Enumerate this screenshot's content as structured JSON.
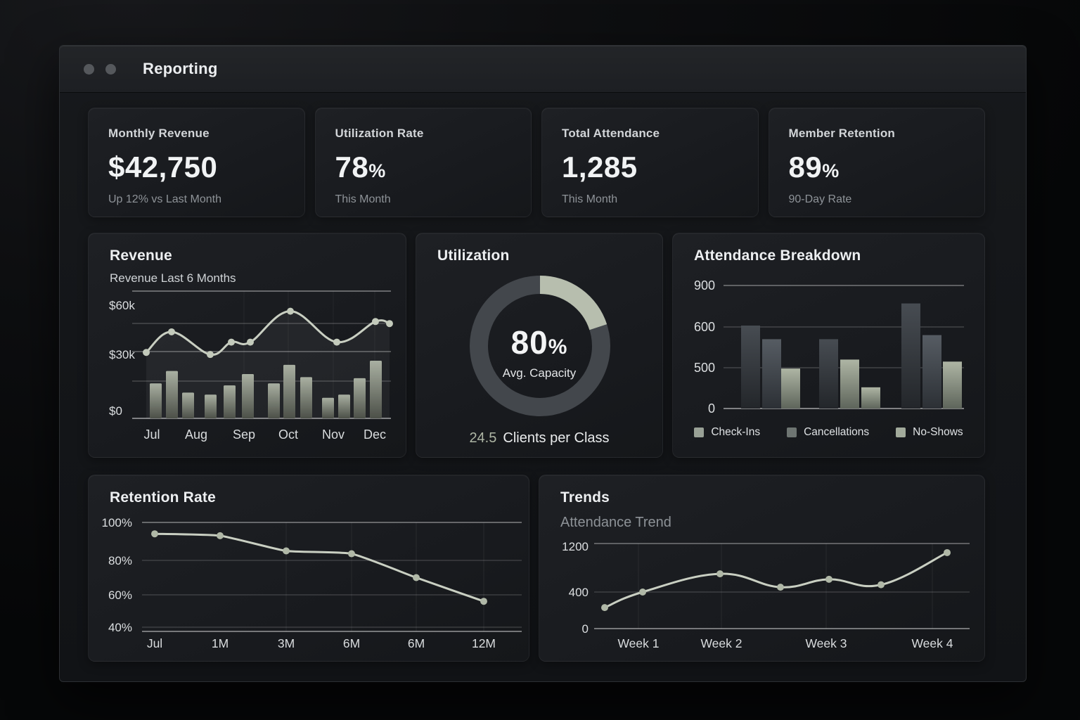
{
  "window": {
    "title": "Reporting"
  },
  "kpis": [
    {
      "label": "Monthly Revenue",
      "value": "$42,750",
      "suffix": "",
      "sub": "Up 12% vs Last Month"
    },
    {
      "label": "Utilization Rate",
      "value": "78",
      "suffix": "%",
      "sub": "This Month"
    },
    {
      "label": "Total Attendance",
      "value": "1,285",
      "suffix": "",
      "sub": "This Month"
    },
    {
      "label": "Member Retention",
      "value": "89",
      "suffix": "%",
      "sub": "90-Day Rate"
    }
  ],
  "colors": {
    "accent_sage": "#b7beae",
    "chart_line": "#c9cfc2",
    "ring_dark": "#43474c",
    "card_bg": "#191b1f",
    "page_bg": "#0a0b0d"
  },
  "chart_data": [
    {
      "id": "revenue",
      "type": "bar+line",
      "title": "Revenue",
      "subtitle": "Revenue Last 6 Months",
      "y_ticks": [
        "$60k",
        "$30k",
        "$0"
      ],
      "x_labels": [
        "Jul",
        "Aug",
        "Sep",
        "Oct",
        "Nov",
        "Dec"
      ],
      "ylim_k": [
        0,
        60
      ],
      "line_values_k": [
        32,
        42,
        31,
        37,
        37,
        52,
        37,
        47,
        46
      ],
      "bar_values_k": [
        17,
        23,
        12.5,
        11.5,
        16,
        21.5,
        17,
        26,
        20,
        10,
        11.5,
        19.5,
        28
      ],
      "line_color": "#c9cfc2",
      "bar_gradient": [
        "#a5ac9d",
        "#43473f"
      ]
    },
    {
      "id": "utilization",
      "type": "donut",
      "title": "Utilization",
      "percent_label": "80",
      "percent_suffix": "%",
      "center_caption": "Avg. Capacity",
      "footer_value": "24.5",
      "footer_label": "Clients per Class",
      "dark_fraction": 0.8,
      "light_fraction": 0.2,
      "ring_dark": "#43474c",
      "ring_light": "#b7beae"
    },
    {
      "id": "attendance",
      "type": "grouped-bar",
      "title": "Attendance Breakdown",
      "y_ticks": [
        "900",
        "600",
        "500",
        "0"
      ],
      "legend": [
        "Check-Ins",
        "Cancellations",
        "No-Shows"
      ],
      "legend_colors": [
        "#99a196",
        "#6e7572",
        "#a2aa9b"
      ],
      "groups": [
        [
          610,
          570,
          490
        ],
        [
          570,
          520,
          260
        ],
        [
          770,
          580,
          515
        ]
      ],
      "bar_styles": [
        [
          "dark",
          "mid",
          "sage"
        ],
        [
          "dark",
          "sage",
          "sage"
        ],
        [
          "dark",
          "mid",
          "sage"
        ]
      ]
    },
    {
      "id": "retention",
      "type": "line",
      "title": "Retention Rate",
      "y_ticks": [
        "100%",
        "80%",
        "60%",
        "40%"
      ],
      "x_labels": [
        "Jul",
        "1M",
        "3M",
        "6M",
        "6M",
        "12M"
      ],
      "values_pct": [
        94,
        93,
        85,
        83.5,
        70,
        56
      ],
      "line_color": "#c9cfc2"
    },
    {
      "id": "trends",
      "type": "line",
      "title": "Trends",
      "subtitle": "Attendance Trend",
      "y_ticks": [
        "1200",
        "400",
        "0"
      ],
      "x_labels": [
        "Week 1",
        "Week 2",
        "Week 3",
        "Week 4"
      ],
      "values": [
        230,
        400,
        700,
        480,
        610,
        520,
        1050
      ],
      "line_color": "#c9cfc2"
    }
  ]
}
